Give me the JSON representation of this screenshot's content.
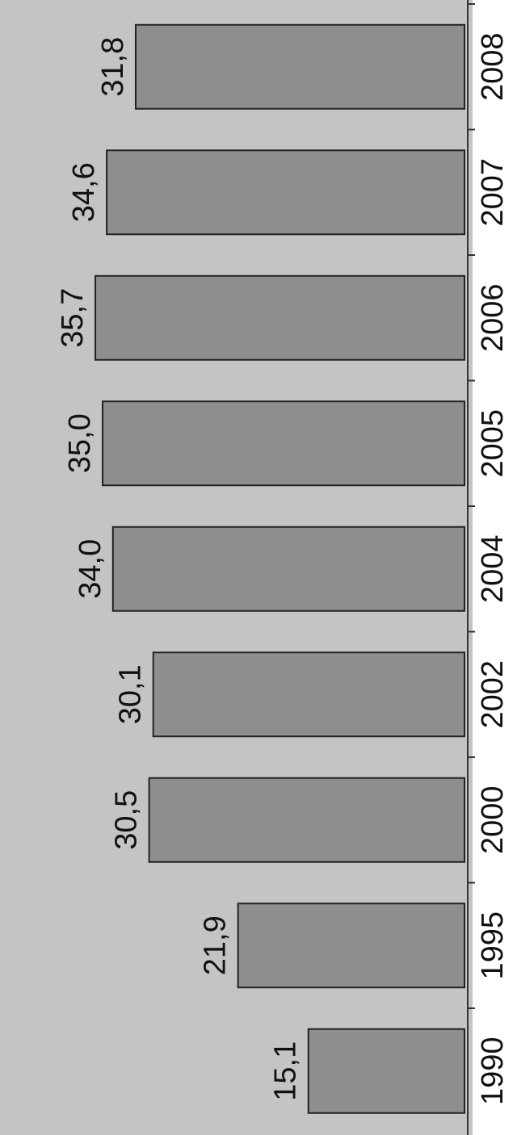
{
  "chart_data": {
    "type": "bar",
    "orientation": "vertical-rotated",
    "categories": [
      "1990",
      "1995",
      "2000",
      "2002",
      "2004",
      "2005",
      "2006",
      "2007",
      "2008"
    ],
    "values": [
      15.1,
      21.9,
      30.5,
      30.1,
      34.0,
      35.0,
      35.7,
      34.6,
      31.8
    ],
    "value_labels": [
      "15,1",
      "21,9",
      "30,5",
      "30,1",
      "34,0",
      "35,0",
      "35,7",
      "34,6",
      "31,8"
    ],
    "title": "",
    "xlabel": "",
    "ylabel": "",
    "ylim": [
      0,
      40
    ],
    "grid": false,
    "legend": "none",
    "colors": {
      "background": "#c4c4c4",
      "bar": "#8e8e8e",
      "bar_edge": "#222222",
      "axis": "#333333",
      "text": "#111111"
    }
  }
}
